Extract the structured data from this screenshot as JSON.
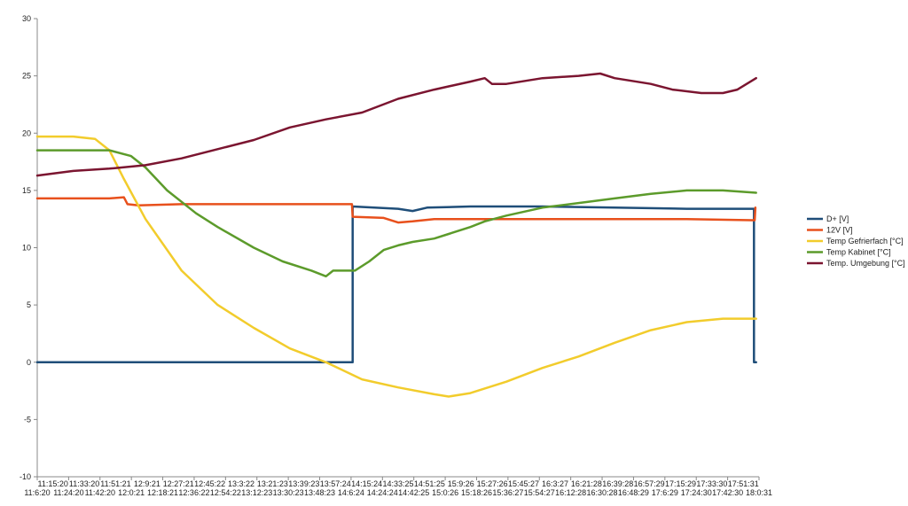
{
  "chart_data": {
    "type": "line",
    "ylim": [
      -10,
      30
    ],
    "yticks": [
      -10,
      -5,
      0,
      5,
      10,
      15,
      20,
      25,
      30
    ],
    "grid": false,
    "legend_position": "right",
    "xtick_labels_top": [
      "11:15:20",
      "11:33:20",
      "11:51:21",
      "12:9:21",
      "12:27:21",
      "12:45:22",
      "13:3:22",
      "13:21:23",
      "13:39:23",
      "13:57:24",
      "14:15:24",
      "14:33:25",
      "14:51:25",
      "15:9:26",
      "15:27:26",
      "15:45:27",
      "16:3:27",
      "16:21:28",
      "16:39:28",
      "16:57:29",
      "17:15:29",
      "17:33:30",
      "17:51:31"
    ],
    "xtick_labels_bottom": [
      "11:6:20",
      "11:24:20",
      "11:42:20",
      "12:0:21",
      "12:18:21",
      "12:36:22",
      "12:54:22",
      "13:12:23",
      "13:30:23",
      "13:48:23",
      "14:6:24",
      "14:24:24",
      "14:42:25",
      "15:0:26",
      "15:18:26",
      "15:36:27",
      "15:54:27",
      "16:12:28",
      "16:30:28",
      "16:48:29",
      "17:6:29",
      "17:24:30",
      "17:42:30",
      "18:0:31"
    ],
    "x_range": [
      0,
      100
    ],
    "series": [
      {
        "name": "D+ [V]",
        "color": "#1f4e79",
        "points": [
          [
            0,
            0
          ],
          [
            43.7,
            0
          ],
          [
            43.7,
            13.6
          ],
          [
            50,
            13.4
          ],
          [
            52,
            13.2
          ],
          [
            54,
            13.5
          ],
          [
            60,
            13.6
          ],
          [
            70,
            13.6
          ],
          [
            80,
            13.5
          ],
          [
            90,
            13.4
          ],
          [
            99.3,
            13.4
          ],
          [
            99.3,
            0
          ],
          [
            99.6,
            0
          ]
        ]
      },
      {
        "name": "12V [V]",
        "color": "#e8501c",
        "points": [
          [
            0,
            14.3
          ],
          [
            5,
            14.3
          ],
          [
            10,
            14.3
          ],
          [
            12,
            14.4
          ],
          [
            12.5,
            13.8
          ],
          [
            14,
            13.7
          ],
          [
            20,
            13.8
          ],
          [
            30,
            13.8
          ],
          [
            40,
            13.8
          ],
          [
            43.6,
            13.8
          ],
          [
            43.7,
            12.7
          ],
          [
            48,
            12.6
          ],
          [
            50,
            12.2
          ],
          [
            52,
            12.3
          ],
          [
            55,
            12.5
          ],
          [
            60,
            12.5
          ],
          [
            70,
            12.5
          ],
          [
            80,
            12.5
          ],
          [
            90,
            12.5
          ],
          [
            99,
            12.4
          ],
          [
            99.4,
            12.4
          ],
          [
            99.5,
            13.5
          ]
        ]
      },
      {
        "name": "Temp Gefrierfach [°C]",
        "color": "#f2cc2c",
        "points": [
          [
            0,
            19.7
          ],
          [
            5,
            19.7
          ],
          [
            8,
            19.5
          ],
          [
            10,
            18.5
          ],
          [
            12,
            16
          ],
          [
            15,
            12.5
          ],
          [
            20,
            8
          ],
          [
            25,
            5
          ],
          [
            30,
            3
          ],
          [
            35,
            1.2
          ],
          [
            40,
            0
          ],
          [
            45,
            -1.5
          ],
          [
            50,
            -2.2
          ],
          [
            55,
            -2.8
          ],
          [
            57,
            -3
          ],
          [
            60,
            -2.7
          ],
          [
            65,
            -1.7
          ],
          [
            70,
            -0.5
          ],
          [
            75,
            0.5
          ],
          [
            80,
            1.7
          ],
          [
            85,
            2.8
          ],
          [
            90,
            3.5
          ],
          [
            95,
            3.8
          ],
          [
            99.6,
            3.8
          ]
        ]
      },
      {
        "name": "Temp Kabinet [°C]",
        "color": "#5c9b2b",
        "points": [
          [
            0,
            18.5
          ],
          [
            5,
            18.5
          ],
          [
            10,
            18.5
          ],
          [
            13,
            18
          ],
          [
            15,
            17
          ],
          [
            18,
            15
          ],
          [
            22,
            13
          ],
          [
            25,
            11.8
          ],
          [
            30,
            10
          ],
          [
            34,
            8.8
          ],
          [
            38,
            8
          ],
          [
            40,
            7.5
          ],
          [
            41,
            8
          ],
          [
            44,
            8
          ],
          [
            46,
            8.8
          ],
          [
            48,
            9.8
          ],
          [
            50,
            10.2
          ],
          [
            52,
            10.5
          ],
          [
            55,
            10.8
          ],
          [
            57,
            11.2
          ],
          [
            60,
            11.8
          ],
          [
            62,
            12.3
          ],
          [
            65,
            12.8
          ],
          [
            70,
            13.5
          ],
          [
            75,
            13.9
          ],
          [
            80,
            14.3
          ],
          [
            85,
            14.7
          ],
          [
            90,
            15
          ],
          [
            95,
            15
          ],
          [
            99.6,
            14.8
          ]
        ]
      },
      {
        "name": "Temp. Umgebung [°C]",
        "color": "#7b1530",
        "points": [
          [
            0,
            16.3
          ],
          [
            5,
            16.7
          ],
          [
            10,
            16.9
          ],
          [
            15,
            17.2
          ],
          [
            20,
            17.8
          ],
          [
            25,
            18.6
          ],
          [
            30,
            19.4
          ],
          [
            35,
            20.5
          ],
          [
            40,
            21.2
          ],
          [
            45,
            21.8
          ],
          [
            50,
            23
          ],
          [
            55,
            23.8
          ],
          [
            60,
            24.5
          ],
          [
            62,
            24.8
          ],
          [
            63,
            24.3
          ],
          [
            65,
            24.3
          ],
          [
            70,
            24.8
          ],
          [
            75,
            25
          ],
          [
            78,
            25.2
          ],
          [
            80,
            24.8
          ],
          [
            85,
            24.3
          ],
          [
            88,
            23.8
          ],
          [
            92,
            23.5
          ],
          [
            95,
            23.5
          ],
          [
            97,
            23.8
          ],
          [
            99.6,
            24.8
          ]
        ]
      }
    ]
  }
}
